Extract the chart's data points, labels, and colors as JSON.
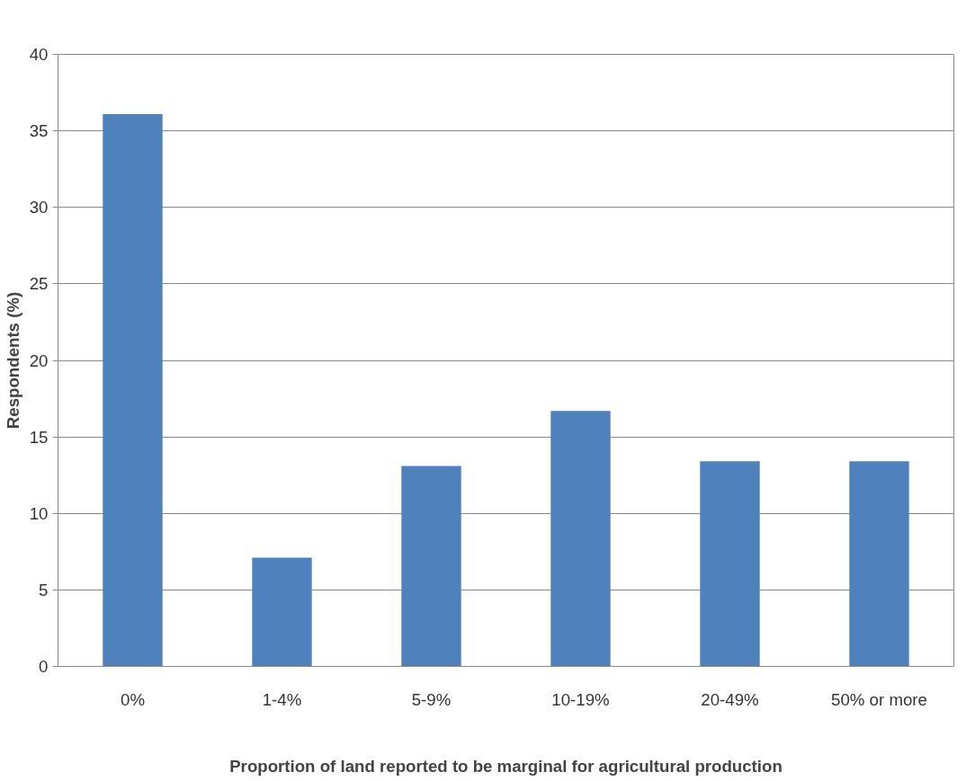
{
  "chart_data": {
    "type": "bar",
    "xlabel": "Proportion of land reported to be marginal for agricultural production",
    "ylabel": "Respondents (%)",
    "categories": [
      "0%",
      "1-4%",
      "5-9%",
      "10-19%",
      "20-49%",
      "50% or more"
    ],
    "values": [
      36.1,
      7.1,
      13.1,
      16.7,
      13.4,
      13.4
    ],
    "color": "#4f81bd",
    "ylim": [
      0,
      40
    ],
    "yticks": [
      0,
      5,
      10,
      15,
      20,
      25,
      30,
      35,
      40
    ],
    "grid": "y"
  }
}
